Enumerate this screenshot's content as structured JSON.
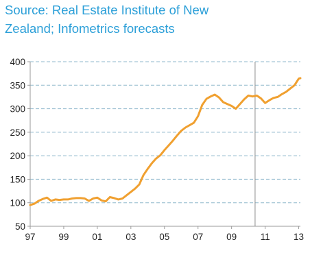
{
  "chart_data": {
    "type": "line",
    "title_lines": [
      "Source: Real Estate Institute of New",
      "Zealand; Infometrics forecasts"
    ],
    "xlabel": "",
    "ylabel": "",
    "xlim": [
      1997,
      2013.1
    ],
    "ylim": [
      50,
      400
    ],
    "yticks": [
      400,
      350,
      300,
      250,
      200,
      150,
      100,
      50
    ],
    "ytick_labels": [
      "400",
      "350",
      "300",
      "250",
      "200",
      "150",
      "100",
      "50"
    ],
    "xticks": [
      1997,
      1999,
      2001,
      2003,
      2005,
      2007,
      2009,
      2011,
      2013
    ],
    "xtick_labels": [
      "97",
      "99",
      "01",
      "03",
      "05",
      "07",
      "09",
      "11",
      "13"
    ],
    "grid": true,
    "forecast_divider_x": 2010.4,
    "line_color": "#f0a030",
    "grid_color": "#8fb8cc",
    "series": [
      {
        "x": [
          1997.0,
          1997.25,
          1997.5,
          1997.75,
          1998.0,
          1998.25,
          1998.5,
          1998.75,
          1999.0,
          1999.25,
          1999.5,
          1999.75,
          2000.0,
          2000.25,
          2000.5,
          2000.75,
          2001.0,
          2001.25,
          2001.5,
          2001.75,
          2002.0,
          2002.25,
          2002.5,
          2002.75,
          2003.0,
          2003.25,
          2003.5,
          2003.75,
          2004.0,
          2004.25,
          2004.5,
          2004.75,
          2005.0,
          2005.25,
          2005.5,
          2005.75,
          2006.0,
          2006.25,
          2006.5,
          2006.75,
          2007.0,
          2007.25,
          2007.5,
          2007.75,
          2008.0,
          2008.25,
          2008.5,
          2008.75,
          2009.0,
          2009.25,
          2009.5,
          2009.75,
          2010.0,
          2010.25,
          2010.5,
          2010.75,
          2011.0,
          2011.25,
          2011.5,
          2011.75,
          2012.0,
          2012.25,
          2012.5,
          2012.75,
          2013.0,
          2013.1
        ],
        "values": [
          95,
          98,
          104,
          108,
          111,
          104,
          107,
          106,
          107,
          107,
          109,
          110,
          110,
          109,
          104,
          109,
          111,
          105,
          103,
          112,
          110,
          107,
          109,
          116,
          123,
          130,
          139,
          159,
          172,
          184,
          194,
          201,
          212,
          222,
          232,
          243,
          253,
          260,
          265,
          270,
          284,
          308,
          321,
          326,
          330,
          324,
          314,
          310,
          306,
          300,
          310,
          320,
          328,
          326,
          328,
          322,
          312,
          318,
          323,
          325,
          331,
          336,
          343,
          350,
          364,
          365
        ]
      }
    ]
  }
}
